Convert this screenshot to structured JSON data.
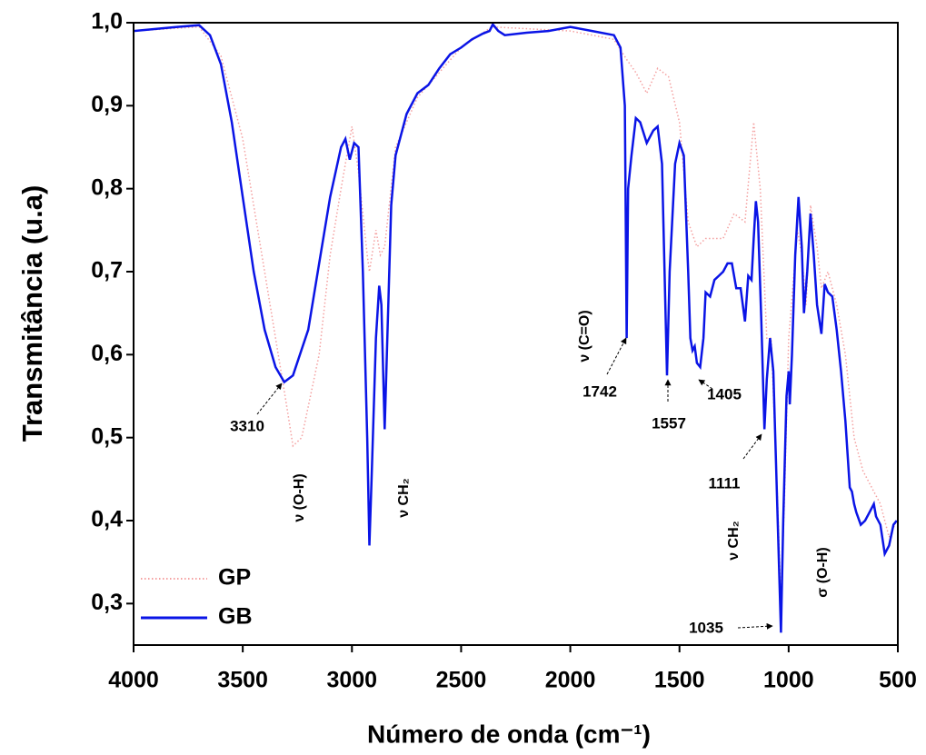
{
  "chart_data": {
    "type": "line",
    "ylabel": "Transmitância (u.a)",
    "xlabel": "Número de onda (cm⁻¹)",
    "xlim": [
      4000,
      500
    ],
    "ylim": [
      0.25,
      1.0
    ],
    "xticks": [
      4000,
      3500,
      3000,
      2500,
      2000,
      1500,
      1000,
      500
    ],
    "yticks": [
      {
        "value": 0.3,
        "label": "0,3"
      },
      {
        "value": 0.4,
        "label": "0,4"
      },
      {
        "value": 0.5,
        "label": "0,5"
      },
      {
        "value": 0.6,
        "label": "0,6"
      },
      {
        "value": 0.7,
        "label": "0,7"
      },
      {
        "value": 0.8,
        "label": "0,8"
      },
      {
        "value": 0.9,
        "label": "0,9"
      },
      {
        "value": 1.0,
        "label": "1,0"
      }
    ],
    "legend": "lower left",
    "series": [
      {
        "name": "GP",
        "color": "#f4a0a0",
        "style": "dotted",
        "x": [
          4000,
          3700,
          3600,
          3500,
          3400,
          3300,
          3270,
          3230,
          3150,
          3100,
          3050,
          3000,
          2970,
          2930,
          2920,
          2890,
          2870,
          2850,
          2800,
          2700,
          2500,
          2360,
          2000,
          1800,
          1740,
          1700,
          1650,
          1600,
          1550,
          1500,
          1460,
          1420,
          1380,
          1300,
          1250,
          1200,
          1160,
          1130,
          1100,
          1080,
          1050,
          1035,
          1020,
          1000,
          960,
          940,
          920,
          900,
          870,
          850,
          820,
          780,
          740,
          700,
          660,
          620,
          580,
          540,
          505
        ],
        "values": [
          0.99,
          0.995,
          0.96,
          0.86,
          0.7,
          0.54,
          0.49,
          0.5,
          0.6,
          0.72,
          0.8,
          0.875,
          0.82,
          0.72,
          0.7,
          0.75,
          0.72,
          0.73,
          0.85,
          0.91,
          0.97,
          0.995,
          0.99,
          0.98,
          0.955,
          0.94,
          0.915,
          0.945,
          0.935,
          0.88,
          0.76,
          0.73,
          0.74,
          0.74,
          0.77,
          0.76,
          0.88,
          0.8,
          0.62,
          0.62,
          0.42,
          0.3,
          0.42,
          0.62,
          0.75,
          0.72,
          0.66,
          0.78,
          0.73,
          0.68,
          0.7,
          0.66,
          0.6,
          0.5,
          0.46,
          0.44,
          0.42,
          0.38,
          0.4
        ]
      },
      {
        "name": "GB",
        "color": "#0a14e6",
        "style": "solid",
        "x": [
          4000,
          3800,
          3700,
          3650,
          3600,
          3550,
          3500,
          3450,
          3400,
          3350,
          3310,
          3270,
          3200,
          3150,
          3100,
          3050,
          3030,
          3010,
          2990,
          2970,
          2950,
          2930,
          2920,
          2910,
          2890,
          2875,
          2865,
          2850,
          2840,
          2820,
          2800,
          2750,
          2700,
          2650,
          2600,
          2550,
          2500,
          2450,
          2400,
          2370,
          2355,
          2330,
          2300,
          2200,
          2100,
          2000,
          1900,
          1800,
          1770,
          1750,
          1742,
          1735,
          1720,
          1700,
          1680,
          1650,
          1620,
          1600,
          1580,
          1557,
          1545,
          1520,
          1500,
          1480,
          1460,
          1450,
          1440,
          1430,
          1420,
          1405,
          1390,
          1380,
          1360,
          1340,
          1320,
          1300,
          1280,
          1260,
          1240,
          1220,
          1200,
          1185,
          1170,
          1160,
          1150,
          1140,
          1125,
          1111,
          1100,
          1085,
          1070,
          1050,
          1035,
          1025,
          1010,
          1000,
          995,
          985,
          970,
          955,
          940,
          930,
          915,
          900,
          885,
          870,
          850,
          835,
          820,
          800,
          780,
          760,
          740,
          720,
          710,
          700,
          690,
          670,
          650,
          630,
          610,
          600,
          580,
          560,
          540,
          520,
          505
        ],
        "values": [
          0.99,
          0.995,
          0.997,
          0.985,
          0.95,
          0.88,
          0.79,
          0.7,
          0.63,
          0.585,
          0.567,
          0.575,
          0.63,
          0.71,
          0.79,
          0.85,
          0.86,
          0.835,
          0.855,
          0.85,
          0.7,
          0.5,
          0.37,
          0.45,
          0.62,
          0.683,
          0.66,
          0.51,
          0.6,
          0.78,
          0.84,
          0.89,
          0.915,
          0.925,
          0.945,
          0.962,
          0.97,
          0.98,
          0.987,
          0.99,
          0.998,
          0.99,
          0.985,
          0.988,
          0.99,
          0.995,
          0.99,
          0.985,
          0.97,
          0.9,
          0.62,
          0.8,
          0.84,
          0.885,
          0.88,
          0.855,
          0.87,
          0.875,
          0.83,
          0.575,
          0.7,
          0.83,
          0.855,
          0.84,
          0.7,
          0.62,
          0.605,
          0.61,
          0.59,
          0.585,
          0.62,
          0.675,
          0.67,
          0.69,
          0.695,
          0.7,
          0.71,
          0.71,
          0.68,
          0.68,
          0.64,
          0.695,
          0.69,
          0.74,
          0.785,
          0.76,
          0.64,
          0.51,
          0.57,
          0.62,
          0.58,
          0.4,
          0.265,
          0.4,
          0.55,
          0.58,
          0.54,
          0.6,
          0.72,
          0.79,
          0.73,
          0.65,
          0.7,
          0.77,
          0.72,
          0.66,
          0.625,
          0.685,
          0.675,
          0.67,
          0.63,
          0.58,
          0.52,
          0.44,
          0.435,
          0.42,
          0.41,
          0.395,
          0.4,
          0.41,
          0.42,
          0.405,
          0.395,
          0.36,
          0.37,
          0.395,
          0.4
        ]
      }
    ],
    "annotations": [
      "3310",
      "ν (O-H)",
      "ν CH₂",
      "ν (C=O)",
      "1742",
      "1557",
      "1405",
      "1111",
      "ν CH₂",
      "σ (O-H)",
      "1035"
    ]
  }
}
